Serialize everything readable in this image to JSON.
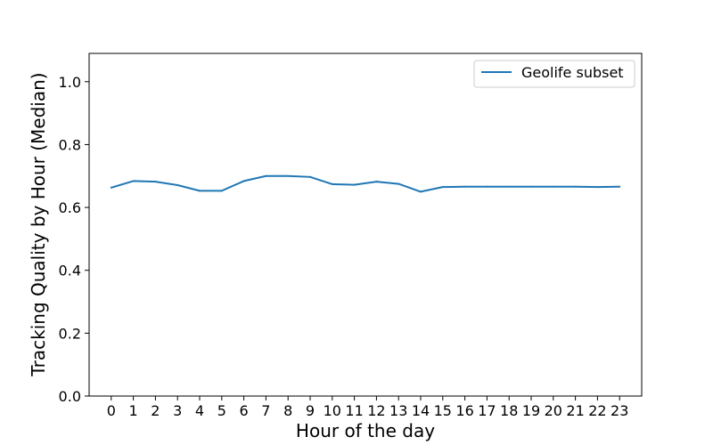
{
  "chart_data": {
    "type": "line",
    "title": "",
    "xlabel": "Hour of the day",
    "ylabel": "Tracking Quality by Hour (Median)",
    "x": [
      0,
      1,
      2,
      3,
      4,
      5,
      6,
      7,
      8,
      9,
      10,
      11,
      12,
      13,
      14,
      15,
      16,
      17,
      18,
      19,
      20,
      21,
      22,
      23
    ],
    "x_tick_labels": [
      "0",
      "1",
      "2",
      "3",
      "4",
      "5",
      "6",
      "7",
      "8",
      "9",
      "10",
      "11",
      "12",
      "13",
      "14",
      "15",
      "16",
      "17",
      "18",
      "19",
      "20",
      "21",
      "22",
      "23"
    ],
    "xlim": [
      -1,
      24
    ],
    "ylim": [
      0.0,
      1.09
    ],
    "y_ticks": [
      0.0,
      0.2,
      0.4,
      0.6,
      0.8,
      1.0
    ],
    "y_tick_labels": [
      "0.0",
      "0.2",
      "0.4",
      "0.6",
      "0.8",
      "1.0"
    ],
    "grid": false,
    "legend": {
      "placement": "top-right"
    },
    "series": [
      {
        "name": "Geolife subset",
        "color": "#1f77b4",
        "values": [
          0.663,
          0.684,
          0.682,
          0.671,
          0.653,
          0.653,
          0.684,
          0.7,
          0.7,
          0.697,
          0.674,
          0.672,
          0.682,
          0.675,
          0.65,
          0.665,
          0.666,
          0.666,
          0.666,
          0.666,
          0.666,
          0.666,
          0.665,
          0.666
        ]
      }
    ]
  }
}
